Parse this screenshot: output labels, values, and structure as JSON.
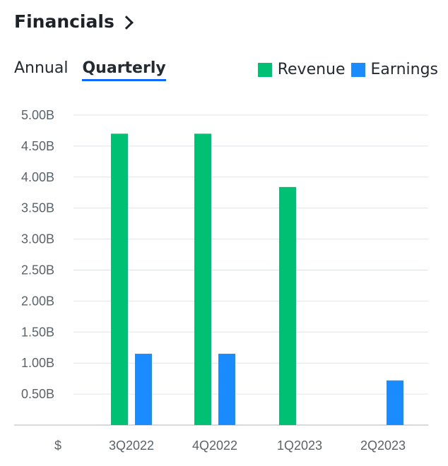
{
  "header": {
    "title": "Financials",
    "chevron_icon": "chevron-right-icon"
  },
  "tabs": [
    {
      "label": "Annual",
      "active": false
    },
    {
      "label": "Quarterly",
      "active": true
    }
  ],
  "legend": [
    {
      "label": "Revenue",
      "color": "#00c073"
    },
    {
      "label": "Earnings",
      "color": "#1a8cff"
    }
  ],
  "chart_data": {
    "type": "bar",
    "categories": [
      "3Q2022",
      "4Q2022",
      "1Q2023",
      "2Q2023"
    ],
    "series": [
      {
        "name": "Revenue",
        "color": "#00c073",
        "values": [
          4.7,
          4.7,
          3.84,
          null
        ]
      },
      {
        "name": "Earnings",
        "color": "#1a8cff",
        "values": [
          1.15,
          1.15,
          null,
          0.72
        ]
      }
    ],
    "yticks": [
      "5.00B",
      "4.50B",
      "4.00B",
      "3.50B",
      "3.00B",
      "2.50B",
      "2.00B",
      "1.50B",
      "1.00B",
      "0.50B"
    ],
    "ytick_values": [
      5.0,
      4.5,
      4.0,
      3.5,
      3.0,
      2.5,
      2.0,
      1.5,
      1.0,
      0.5
    ],
    "ylim": [
      0,
      5.0
    ],
    "unit_label": "$",
    "grid": true,
    "legend_position": "top-right"
  }
}
